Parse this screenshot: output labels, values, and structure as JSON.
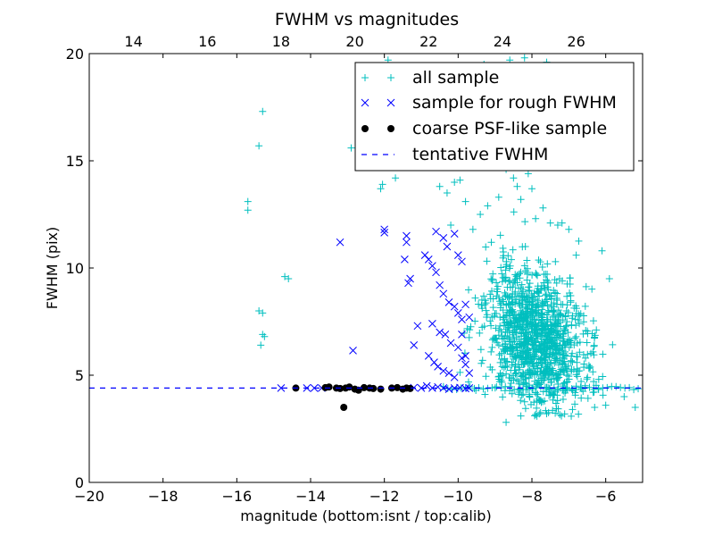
{
  "chart_data": {
    "type": "scatter",
    "title": "FWHM vs magnitudes",
    "xlabel": "magnitude (bottom:isnt / top:calib)",
    "ylabel": "FWHM (pix)",
    "xlim": [
      -20,
      -5
    ],
    "ylim": [
      0,
      20
    ],
    "x_ticks": [
      "−20",
      "−18",
      "−16",
      "−14",
      "−12",
      "−10",
      "−8",
      "−6"
    ],
    "x_tick_values": [
      -20,
      -18,
      -16,
      -14,
      -12,
      -10,
      -8,
      -6
    ],
    "y_ticks": [
      "0",
      "5",
      "10",
      "15",
      "20"
    ],
    "y_tick_values": [
      0,
      5,
      10,
      15,
      20
    ],
    "top_x_ticks": [
      "14",
      "16",
      "18",
      "20",
      "22",
      "24",
      "26"
    ],
    "top_x_tick_values": [
      -18.8,
      -16.8,
      -14.8,
      -12.8,
      -10.8,
      -8.8,
      -6.8
    ],
    "grid": false,
    "legend_position": "top-right",
    "legend": [
      {
        "label": "all sample",
        "marker": "+",
        "color": "#00bfbf"
      },
      {
        "label": "sample for rough FWHM",
        "marker": "x",
        "color": "#0000ff"
      },
      {
        "label": "coarse PSF-like sample",
        "marker": "o",
        "color": "#000000"
      },
      {
        "label": "tentative FWHM",
        "marker": "--",
        "color": "#0000ff"
      }
    ],
    "series": [
      {
        "name": "all sample",
        "marker": "+",
        "color": "#00bfbf",
        "points": [
          [
            -15.3,
            17.3
          ],
          [
            -15.4,
            15.7
          ],
          [
            -15.7,
            13.1
          ],
          [
            -15.7,
            12.7
          ],
          [
            -15.4,
            8.0
          ],
          [
            -15.3,
            7.9
          ],
          [
            -15.3,
            6.9
          ],
          [
            -15.25,
            6.8
          ],
          [
            -15.35,
            6.4
          ],
          [
            -14.7,
            9.6
          ],
          [
            -14.6,
            9.5
          ],
          [
            -12.9,
            15.6
          ],
          [
            -12.1,
            13.7
          ],
          [
            -12.05,
            13.9
          ],
          [
            -11.7,
            14.2
          ],
          [
            -11.0,
            15.9
          ],
          [
            -10.9,
            15.3
          ],
          [
            -10.5,
            13.8
          ],
          [
            -10.3,
            13.5
          ],
          [
            -10.2,
            12.0
          ],
          [
            -10.1,
            14.0
          ],
          [
            -9.95,
            14.1
          ],
          [
            -9.8,
            13.1
          ],
          [
            -9.6,
            11.8
          ],
          [
            -9.4,
            12.5
          ],
          [
            -9.2,
            12.9
          ],
          [
            -9.1,
            11.2
          ],
          [
            -8.9,
            13.3
          ],
          [
            -8.8,
            14.9
          ],
          [
            -8.7,
            14.6
          ],
          [
            -8.5,
            14.2
          ],
          [
            -8.4,
            13.8
          ],
          [
            -8.3,
            13.2
          ],
          [
            -8.1,
            14.4
          ],
          [
            -8.0,
            13.7
          ],
          [
            -7.9,
            12.3
          ],
          [
            -7.7,
            12.8
          ],
          [
            -7.5,
            12.1
          ],
          [
            -7.3,
            12.0
          ],
          [
            -7.0,
            11.8
          ],
          [
            -6.8,
            10.6
          ],
          [
            -6.1,
            10.8
          ],
          [
            -5.9,
            9.5
          ],
          [
            -7.6,
            19.6
          ],
          [
            -8.6,
            19.7
          ],
          [
            -9.3,
            19.5
          ],
          [
            -8.2,
            19.8
          ],
          [
            -11.9,
            19.7
          ],
          [
            -8.7,
            2.8
          ],
          [
            -8.3,
            3.1
          ],
          [
            -7.8,
            3.2
          ],
          [
            -7.2,
            3.1
          ],
          [
            -6.9,
            3.4
          ],
          [
            -6.3,
            3.5
          ],
          [
            -6.0,
            3.6
          ],
          [
            -5.2,
            3.5
          ],
          [
            -5.5,
            4.0
          ]
        ],
        "cloud": {
          "center": [
            -7.9,
            6.7
          ],
          "spread": [
            0.7,
            1.6
          ],
          "count": 1200,
          "xrange": [
            -10.0,
            -5.0
          ],
          "yrange": [
            3.0,
            13.0
          ],
          "seed": 7
        }
      },
      {
        "name": "sample for rough FWHM",
        "marker": "x",
        "color": "#0000ff",
        "points": [
          [
            -14.8,
            4.4
          ],
          [
            -14.1,
            4.4
          ],
          [
            -13.9,
            4.4
          ],
          [
            -13.7,
            4.4
          ],
          [
            -13.2,
            11.2
          ],
          [
            -12.85,
            6.15
          ],
          [
            -12.0,
            11.8
          ],
          [
            -12.0,
            11.65
          ],
          [
            -11.4,
            11.5
          ],
          [
            -11.4,
            11.2
          ],
          [
            -11.45,
            10.4
          ],
          [
            -11.3,
            9.5
          ],
          [
            -11.35,
            9.3
          ],
          [
            -11.1,
            7.3
          ],
          [
            -11.2,
            6.4
          ],
          [
            -10.9,
            10.6
          ],
          [
            -10.8,
            10.4
          ],
          [
            -10.7,
            10.1
          ],
          [
            -10.6,
            11.7
          ],
          [
            -10.4,
            11.4
          ],
          [
            -10.3,
            11.0
          ],
          [
            -10.1,
            11.6
          ],
          [
            -10.0,
            10.6
          ],
          [
            -9.9,
            10.3
          ],
          [
            -10.6,
            9.8
          ],
          [
            -10.5,
            9.2
          ],
          [
            -10.4,
            8.8
          ],
          [
            -10.25,
            8.4
          ],
          [
            -10.1,
            8.2
          ],
          [
            -10.0,
            7.9
          ],
          [
            -9.9,
            7.6
          ],
          [
            -9.8,
            8.3
          ],
          [
            -9.7,
            7.7
          ],
          [
            -10.7,
            7.4
          ],
          [
            -10.5,
            7.0
          ],
          [
            -10.35,
            6.9
          ],
          [
            -10.2,
            6.5
          ],
          [
            -10.0,
            6.3
          ],
          [
            -9.9,
            6.9
          ],
          [
            -9.8,
            5.9
          ],
          [
            -10.8,
            5.9
          ],
          [
            -10.65,
            5.6
          ],
          [
            -10.55,
            5.4
          ],
          [
            -10.4,
            5.2
          ],
          [
            -10.25,
            5.1
          ],
          [
            -10.1,
            4.9
          ],
          [
            -9.9,
            5.8
          ],
          [
            -9.8,
            5.5
          ],
          [
            -9.7,
            5.1
          ],
          [
            -10.85,
            4.5
          ],
          [
            -10.7,
            4.4
          ],
          [
            -10.55,
            4.45
          ],
          [
            -10.4,
            4.4
          ],
          [
            -10.25,
            4.35
          ],
          [
            -10.1,
            4.4
          ],
          [
            -9.95,
            4.42
          ],
          [
            -9.8,
            4.38
          ],
          [
            -11.0,
            4.4
          ],
          [
            -11.2,
            4.42
          ],
          [
            -9.7,
            4.4
          ]
        ]
      },
      {
        "name": "coarse PSF-like sample",
        "marker": "o",
        "color": "#000000",
        "points": [
          [
            -14.4,
            4.4
          ],
          [
            -13.6,
            4.42
          ],
          [
            -13.5,
            4.45
          ],
          [
            -13.3,
            4.4
          ],
          [
            -13.2,
            4.38
          ],
          [
            -13.05,
            4.4
          ],
          [
            -12.95,
            4.45
          ],
          [
            -12.8,
            4.35
          ],
          [
            -12.7,
            4.3
          ],
          [
            -12.55,
            4.42
          ],
          [
            -12.4,
            4.4
          ],
          [
            -12.3,
            4.38
          ],
          [
            -12.1,
            4.35
          ],
          [
            -11.8,
            4.4
          ],
          [
            -11.65,
            4.42
          ],
          [
            -11.5,
            4.35
          ],
          [
            -11.4,
            4.4
          ],
          [
            -11.3,
            4.38
          ],
          [
            -13.1,
            3.5
          ]
        ]
      }
    ],
    "reference_line": {
      "name": "tentative FWHM",
      "y": 4.4,
      "style": "dashed",
      "color": "#0000ff"
    }
  }
}
